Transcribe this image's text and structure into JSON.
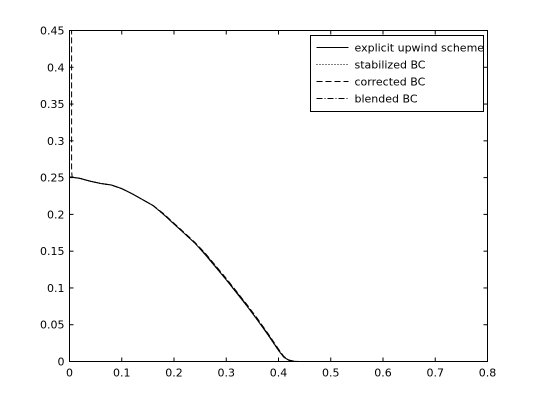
{
  "chart_data": {
    "type": "line",
    "title": "",
    "xlabel": "",
    "ylabel": "",
    "xlim": [
      0,
      0.8
    ],
    "ylim": [
      0,
      0.45
    ],
    "xticks": [
      "0",
      "0.1",
      "0.2",
      "0.3",
      "0.4",
      "0.5",
      "0.6",
      "0.7",
      "0.8"
    ],
    "yticks": [
      "0",
      "0.05",
      "0.1",
      "0.15",
      "0.2",
      "0.25",
      "0.3",
      "0.35",
      "0.4",
      "0.45"
    ],
    "grid": false,
    "legend_position": "top-right",
    "series": [
      {
        "name": "explicit upwind scheme",
        "style": "solid",
        "color": "#000000",
        "x": [
          0,
          0.02,
          0.04,
          0.06,
          0.08,
          0.1,
          0.12,
          0.14,
          0.16,
          0.18,
          0.2,
          0.22,
          0.24,
          0.26,
          0.28,
          0.3,
          0.32,
          0.34,
          0.36,
          0.38,
          0.4,
          0.41,
          0.42,
          0.43,
          0.44,
          0.5,
          0.6,
          0.7,
          0.8
        ],
        "y": [
          0.251,
          0.249,
          0.245,
          0.242,
          0.24,
          0.235,
          0.228,
          0.22,
          0.212,
          0.2,
          0.187,
          0.174,
          0.161,
          0.145,
          0.128,
          0.111,
          0.093,
          0.075,
          0.056,
          0.036,
          0.015,
          0.006,
          0.0015,
          0.0002,
          0,
          0,
          0,
          0,
          0
        ]
      },
      {
        "name": "stabilized BC",
        "style": "dotted",
        "color": "#000000",
        "x": [
          0,
          0.02,
          0.04,
          0.06,
          0.08,
          0.1,
          0.12,
          0.14,
          0.16,
          0.18,
          0.2,
          0.22,
          0.24,
          0.26,
          0.28,
          0.3,
          0.32,
          0.34,
          0.36,
          0.38,
          0.4,
          0.41,
          0.42,
          0.43,
          0.44,
          0.5,
          0.6,
          0.7,
          0.8
        ],
        "y": [
          0.251,
          0.249,
          0.245,
          0.242,
          0.24,
          0.235,
          0.228,
          0.22,
          0.212,
          0.2,
          0.187,
          0.174,
          0.161,
          0.145,
          0.128,
          0.111,
          0.093,
          0.075,
          0.056,
          0.036,
          0.015,
          0.006,
          0.0015,
          0.0002,
          0,
          0,
          0,
          0,
          0
        ]
      },
      {
        "name": "corrected BC",
        "style": "dashed",
        "color": "#000000",
        "x": [
          0,
          0.004,
          0.004,
          0.005,
          0.02,
          0.04,
          0.06,
          0.08,
          0.1,
          0.12,
          0.14,
          0.16,
          0.18,
          0.2,
          0.22,
          0.24,
          0.26,
          0.28,
          0.3,
          0.32,
          0.34,
          0.36,
          0.38,
          0.4,
          0.41,
          0.42,
          0.43,
          0.44,
          0.5,
          0.6,
          0.7,
          0.8
        ],
        "y": [
          0.45,
          0.45,
          0.26,
          0.251,
          0.249,
          0.245,
          0.242,
          0.24,
          0.235,
          0.228,
          0.22,
          0.212,
          0.201,
          0.188,
          0.175,
          0.162,
          0.147,
          0.13,
          0.113,
          0.095,
          0.077,
          0.058,
          0.038,
          0.017,
          0.007,
          0.002,
          0.0003,
          0,
          0,
          0,
          0,
          0
        ]
      },
      {
        "name": "blended BC",
        "style": "dashdot",
        "color": "#000000",
        "x": [
          0,
          0.02,
          0.04,
          0.06,
          0.08,
          0.1,
          0.12,
          0.14,
          0.16,
          0.18,
          0.2,
          0.22,
          0.24,
          0.26,
          0.28,
          0.3,
          0.32,
          0.34,
          0.36,
          0.38,
          0.4,
          0.41,
          0.42,
          0.43,
          0.44,
          0.5,
          0.6,
          0.7,
          0.8
        ],
        "y": [
          0.251,
          0.249,
          0.245,
          0.242,
          0.24,
          0.235,
          0.228,
          0.22,
          0.212,
          0.2,
          0.187,
          0.174,
          0.161,
          0.146,
          0.129,
          0.112,
          0.094,
          0.076,
          0.057,
          0.037,
          0.016,
          0.0065,
          0.0018,
          0.0003,
          0,
          0,
          0,
          0,
          0
        ]
      }
    ]
  }
}
